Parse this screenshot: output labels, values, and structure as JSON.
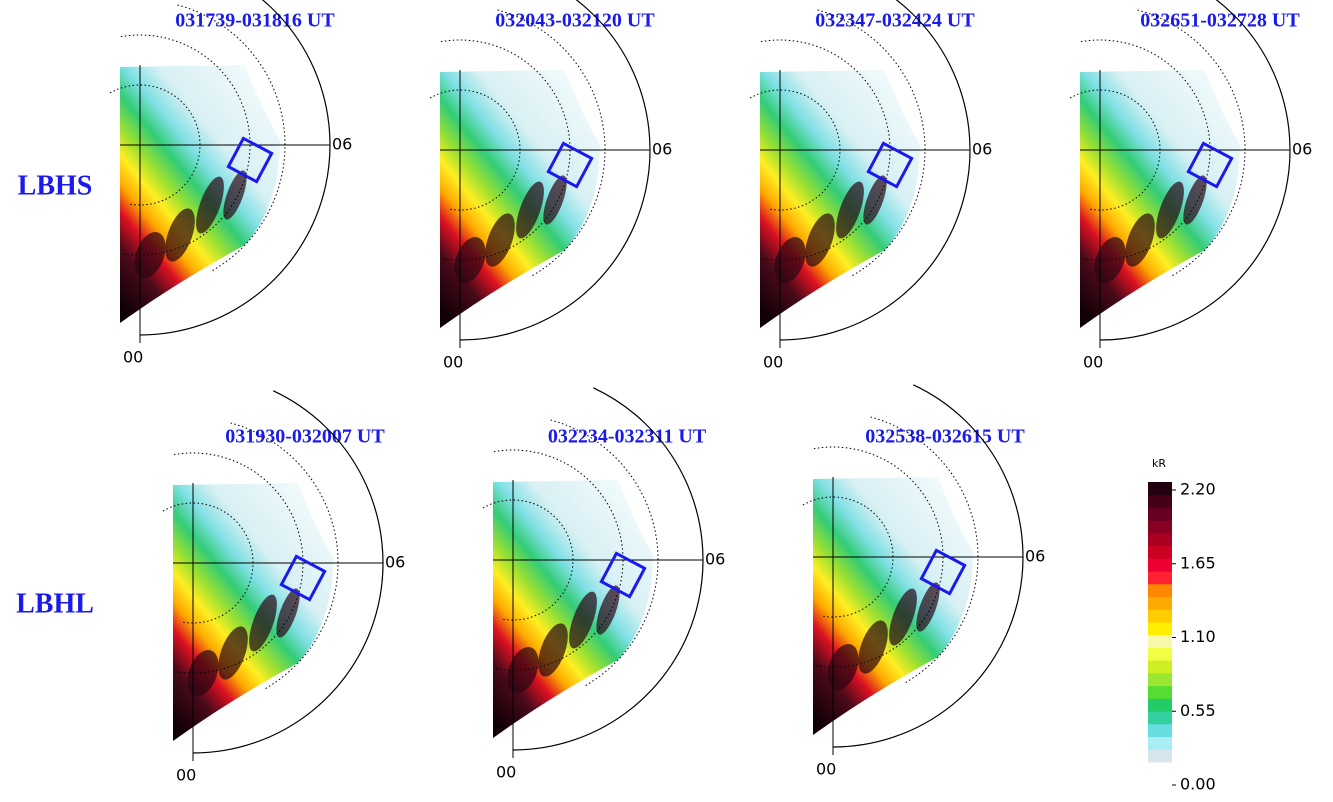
{
  "rows": [
    {
      "label": "LBHS",
      "panels": [
        "031739-031816 UT",
        "032043-032120 UT",
        "032347-032424 UT",
        "032651-032728 UT"
      ]
    },
    {
      "label": "LBHL",
      "panels": [
        "031930-032007 UT",
        "032234-032311 UT",
        "032538-032615 UT"
      ]
    }
  ],
  "axis_labels": {
    "midnight": "00",
    "dawn": "06"
  },
  "colorbar": {
    "unit": "kR",
    "range": [
      0,
      2.2
    ],
    "ticks": [
      {
        "value": 2.2,
        "label": "2.20"
      },
      {
        "value": 1.65,
        "label": "1.65"
      },
      {
        "value": 1.1,
        "label": "1.10"
      },
      {
        "value": 0.55,
        "label": "0.55"
      },
      {
        "value": 0,
        "label": "0.00"
      }
    ]
  }
}
